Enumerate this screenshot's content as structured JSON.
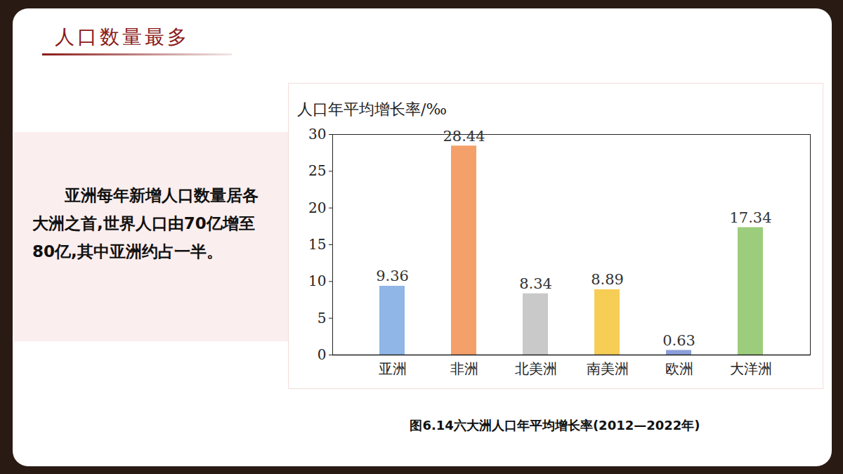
{
  "page": {
    "heading": "人口数量最多",
    "text": "亚洲每年新增人口数量居各大洲之首,世界人口由70亿增至80亿,其中亚洲约占一半。"
  },
  "chart_data": {
    "type": "bar",
    "title": "图6.14六大洲人口年平均增长率(2012—2022年)",
    "ylabel": "人口年平均增长率/‰",
    "categories": [
      "亚洲",
      "非洲",
      "北美洲",
      "南美洲",
      "欧洲",
      "大洋洲"
    ],
    "values": [
      9.36,
      28.44,
      8.34,
      8.89,
      0.63,
      17.34
    ],
    "value_labels": [
      "9.36",
      "28.44",
      "8.34",
      "8.89",
      "0.63",
      "17.34"
    ],
    "colors": [
      "#8fb6e6",
      "#f4a06a",
      "#c9c9c9",
      "#f6cd55",
      "#8c9fd9",
      "#9ccd7c"
    ],
    "ylim": [
      0,
      30
    ],
    "yticks": [
      0,
      5,
      10,
      15,
      20,
      25,
      30
    ],
    "grid": false,
    "data_labels": true
  }
}
